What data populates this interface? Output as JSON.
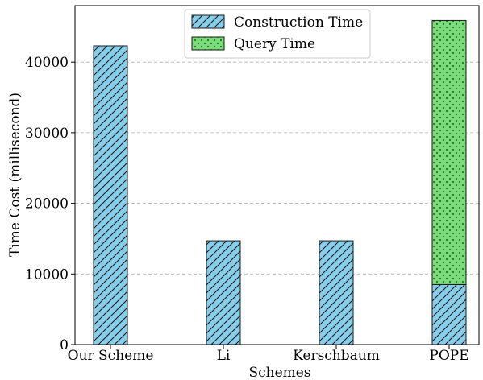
{
  "chart_data": {
    "type": "bar",
    "stacked": true,
    "title": "",
    "xlabel": "Schemes",
    "ylabel": "Time Cost (millisecond)",
    "categories": [
      "Our Scheme",
      "Li",
      "Kerschbaum",
      "POPE"
    ],
    "series": [
      {
        "name": "Construction Time",
        "values": [
          42300,
          14700,
          14700,
          8500
        ],
        "color": "#87CEEB",
        "hatch": "diagonal"
      },
      {
        "name": "Query Time",
        "values": [
          0,
          0,
          0,
          37400
        ],
        "color": "#77DD77",
        "hatch": "dots"
      }
    ],
    "ylim": [
      0,
      48000
    ],
    "yticks": [
      0,
      10000,
      20000,
      30000,
      40000
    ],
    "grid": "y-dashed",
    "legend_position": "top-center"
  }
}
